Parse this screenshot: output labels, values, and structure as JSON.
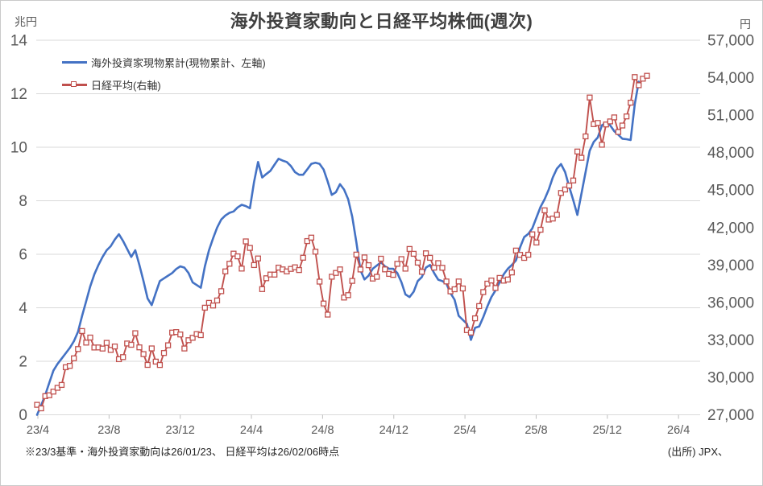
{
  "title": "海外投資家動向と日経平均株価(週次)",
  "units": {
    "left": "兆円",
    "right": "円"
  },
  "legend": [
    {
      "label": "海外投資家現物累計(現物累計、左軸)",
      "color": "#4472C4",
      "swatch": "line"
    },
    {
      "label": "日経平均(右軸)",
      "color": "#C0504D",
      "swatch": "line-open-square"
    }
  ],
  "footnote": "※23/3基準・海外投資家動向は26/01/23、 日経平均は26/02/06時点",
  "source": "(出所) JPX、",
  "chart_data": {
    "type": "line",
    "title": "海外投資家動向と日経平均株価(週次)",
    "x_frequency": "weekly",
    "x_range_shown": "23/4 - 26/4",
    "x_tick_labels": [
      "23/4",
      "23/8",
      "23/12",
      "24/4",
      "24/8",
      "24/12",
      "25/4",
      "25/8",
      "25/12",
      "26/4"
    ],
    "grid": "horizontal-only",
    "legend_position": "top-left-inside",
    "colors": {
      "grid": "#d9d9d9",
      "axis_text": "#595959",
      "tick": "#bfbfbf"
    },
    "left_axis": {
      "unit": "兆円",
      "ylim": [
        0,
        14
      ],
      "ticks": [
        0,
        2,
        4,
        6,
        8,
        10,
        12,
        14
      ]
    },
    "right_axis": {
      "unit": "円",
      "ylim": [
        27000,
        57000
      ],
      "ticks": [
        27000,
        30000,
        33000,
        36000,
        39000,
        42000,
        45000,
        48000,
        51000,
        54000,
        57000
      ]
    },
    "series": [
      {
        "name": "海外投資家現物累計(現物累計、左軸)",
        "axis": "left",
        "color": "#4472C4",
        "marker": "none",
        "values": [
          0.0,
          0.35,
          0.75,
          1.2,
          1.65,
          1.9,
          2.1,
          2.3,
          2.5,
          2.75,
          3.1,
          3.7,
          4.25,
          4.8,
          5.25,
          5.6,
          5.9,
          6.15,
          6.3,
          6.55,
          6.75,
          6.5,
          6.2,
          5.9,
          6.15,
          5.6,
          5.0,
          4.35,
          4.1,
          4.55,
          5.0,
          5.1,
          5.2,
          5.3,
          5.45,
          5.55,
          5.5,
          5.3,
          4.95,
          4.85,
          4.75,
          5.55,
          6.15,
          6.6,
          7.0,
          7.3,
          7.45,
          7.55,
          7.6,
          7.75,
          7.85,
          7.8,
          7.72,
          8.7,
          9.45,
          8.87,
          9.0,
          9.12,
          9.35,
          9.57,
          9.5,
          9.45,
          9.3,
          9.07,
          8.97,
          8.97,
          9.17,
          9.38,
          9.42,
          9.38,
          9.17,
          8.72,
          8.22,
          8.32,
          8.62,
          8.42,
          8.06,
          7.4,
          6.45,
          5.4,
          5.06,
          5.2,
          5.46,
          5.58,
          5.7,
          5.55,
          5.46,
          5.46,
          5.3,
          4.96,
          4.5,
          4.4,
          4.6,
          5.0,
          5.15,
          5.5,
          5.6,
          5.3,
          5.05,
          5.0,
          4.9,
          4.55,
          4.3,
          3.7,
          3.55,
          3.4,
          2.8,
          3.25,
          3.3,
          3.65,
          4.05,
          4.4,
          4.65,
          4.95,
          5.25,
          5.46,
          5.6,
          5.77,
          6.26,
          6.64,
          6.76,
          6.97,
          7.37,
          7.77,
          8.06,
          8.42,
          8.87,
          9.2,
          9.37,
          9.07,
          8.52,
          8.02,
          7.47,
          8.27,
          9.07,
          9.87,
          10.2,
          10.37,
          10.82,
          10.92,
          10.82,
          10.6,
          10.47,
          10.32,
          10.3,
          10.27,
          11.6,
          12.45
        ]
      },
      {
        "name": "日経平均(右軸)",
        "axis": "right",
        "color": "#C0504D",
        "marker": "open-square",
        "values": [
          27800,
          27518,
          28493,
          28564,
          28856,
          29158,
          29388,
          30808,
          30916,
          31524,
          32265,
          33706,
          32781,
          33189,
          32388,
          32391,
          32304,
          32759,
          32193,
          32474,
          31451,
          31624,
          32711,
          32607,
          33533,
          32402,
          31858,
          30995,
          32316,
          31259,
          30992,
          31950,
          32568,
          33585,
          33626,
          33432,
          32308,
          32971,
          33169,
          33464,
          33378,
          35577,
          35963,
          35751,
          36158,
          36897,
          38487,
          39099,
          39910,
          39689,
          38708,
          40888,
          40369,
          38992,
          39524,
          37068,
          37934,
          38236,
          38229,
          38787,
          38646,
          38487,
          38683,
          38814,
          38596,
          39583,
          40912,
          41191,
          40063,
          37667,
          35910,
          35025,
          38062,
          38364,
          38648,
          36391,
          36582,
          37724,
          39830,
          38636,
          39606,
          38982,
          37914,
          38053,
          39500,
          38643,
          38284,
          38208,
          39091,
          39470,
          38702,
          40281,
          39895,
          39190,
          38451,
          39932,
          39572,
          38787,
          39149,
          38776,
          37676,
          36887,
          37053,
          37677,
          37120,
          33781,
          33586,
          34730,
          35706,
          36831,
          37503,
          37754,
          37160,
          37965,
          37742,
          37834,
          38403,
          40151,
          39811,
          39570,
          39819,
          41456,
          40800,
          41820,
          43378,
          42633,
          42718,
          43018,
          44768,
          45045,
          45355,
          45770,
          48089,
          47582,
          49300,
          52411,
          50276,
          50377,
          48626,
          50254,
          50500,
          50820,
          49650,
          50170,
          50900,
          52000,
          54050,
          53400,
          53920,
          54150
        ]
      }
    ]
  }
}
